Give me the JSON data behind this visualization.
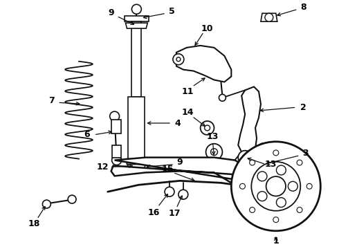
{
  "bg_color": "#ffffff",
  "line_color": "#111111",
  "label_color": "#000000",
  "fig_width": 4.9,
  "fig_height": 3.6,
  "dpi": 100
}
